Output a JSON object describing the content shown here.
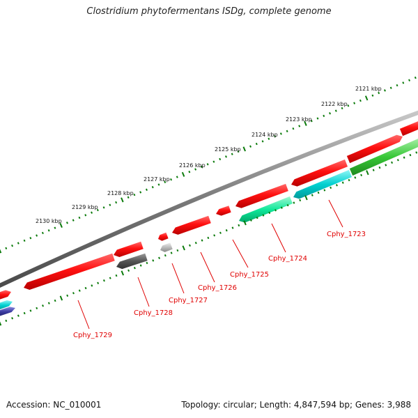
{
  "title": "Clostridium phytofermentans ISDg, complete genome",
  "accession": "Accession: NC_010001",
  "summary": "Topology: circular; Length: 4,847,594 bp; Genes: 3,988",
  "kbp_labels": [
    "2121 kbp",
    "2122 kbp",
    "2123 kbp",
    "2124 kbp",
    "2125 kbp",
    "2126 kbp",
    "2127 kbp",
    "2128 kbp",
    "2129 kbp",
    "2130 kbp"
  ],
  "gene_labels": [
    "Cphy_1723",
    "Cphy_1724",
    "Cphy_1725",
    "Cphy_1726",
    "Cphy_1727",
    "Cphy_1728",
    "Cphy_1729"
  ],
  "colors": {
    "backbone": "#7a7a7a",
    "forward_gene": "#ff1010",
    "ticks": "#0a7a0a",
    "label": "#e00000",
    "teal": "#00d8d8",
    "mint": "#10e89a",
    "green": "#38c838",
    "gray_dark": "#555555",
    "gray_light": "#bbbbbb",
    "navy": "#3a3aa0"
  }
}
